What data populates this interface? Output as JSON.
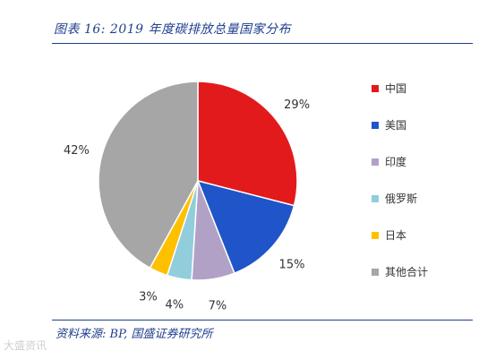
{
  "header": {
    "title": "图表 16: 2019 年度碳排放总量国家分布"
  },
  "footer": {
    "source": "资料来源: BP, 国盛证券研究所",
    "watermark": "大盛资讯"
  },
  "chart_data": {
    "type": "pie",
    "start_angle": "12 o'clock",
    "direction": "clockwise",
    "categories": [
      "中国",
      "美国",
      "印度",
      "俄罗斯",
      "日本",
      "其他合计"
    ],
    "values": [
      29,
      15,
      7,
      4,
      3,
      42
    ],
    "labels": [
      "29%",
      "15%",
      "7%",
      "4%",
      "3%",
      "42%"
    ],
    "colors": [
      "#e31a1c",
      "#1f55c9",
      "#b2a1c7",
      "#92cddc",
      "#ffc000",
      "#a6a6a6"
    ],
    "legend_position": "right",
    "unit": "%"
  }
}
